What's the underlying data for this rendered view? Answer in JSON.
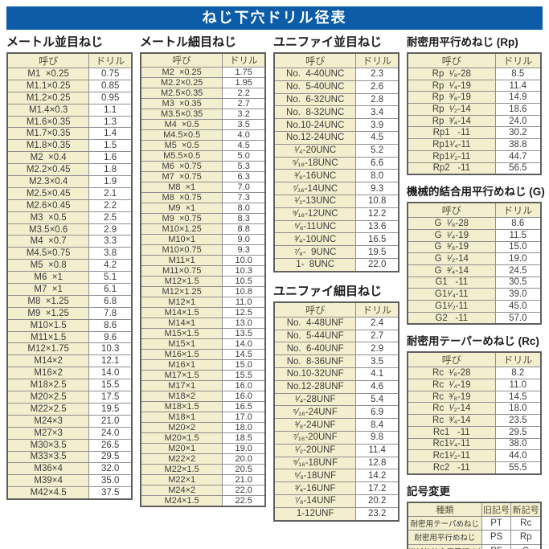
{
  "page_title": "ねじ下穴ドリル径表",
  "col_headers": {
    "name": "呼び",
    "drill": "ドリル"
  },
  "colors": {
    "banner_blue": "#0c5ca8",
    "cell_cream": "#f3eecd",
    "border_gray": "#8f8f8f"
  },
  "corner_mark": "‥",
  "sections": {
    "metric_coarse": {
      "title": "メートル並目ねじ",
      "rows": [
        [
          "M1  ×0.25",
          "0.75"
        ],
        [
          "M1.1×0.25",
          "0.85"
        ],
        [
          "M1.2×0.25",
          "0.95"
        ],
        [
          "M1.4×0.3",
          "1.1"
        ],
        [
          "M1.6×0.35",
          "1.3"
        ],
        [
          "M1.7×0.35",
          "1.4"
        ],
        [
          "M1.8×0.35",
          "1.5"
        ],
        [
          "M2  ×0.4",
          "1.6"
        ],
        [
          "M2.2×0.45",
          "1.8"
        ],
        [
          "M2.3×0.4",
          "1.9"
        ],
        [
          "M2.5×0.45",
          "2.1"
        ],
        [
          "M2.6×0.45",
          "2.2"
        ],
        [
          "M3  ×0.5",
          "2.5"
        ],
        [
          "M3.5×0.6",
          "2.9"
        ],
        [
          "M4  ×0.7",
          "3.3"
        ],
        [
          "M4.5×0.75",
          "3.8"
        ],
        [
          "M5  ×0.8",
          "4.2"
        ],
        [
          "M6  ×1",
          "5.1"
        ],
        [
          "M7  ×1",
          "6.1"
        ],
        [
          "M8  ×1.25",
          "6.8"
        ],
        [
          "M9  ×1.25",
          "7.8"
        ],
        [
          "M10×1.5",
          "8.6"
        ],
        [
          "M11×1.5",
          "9.6"
        ],
        [
          "M12×1.75",
          "10.3"
        ],
        [
          "M14×2",
          "12.1"
        ],
        [
          "M16×2",
          "14.0"
        ],
        [
          "M18×2.5",
          "15.5"
        ],
        [
          "M20×2.5",
          "17.5"
        ],
        [
          "M22×2.5",
          "19.5"
        ],
        [
          "M24×3",
          "21.0"
        ],
        [
          "M27×3",
          "24.0"
        ],
        [
          "M30×3.5",
          "26.5"
        ],
        [
          "M33×3.5",
          "29.5"
        ],
        [
          "M36×4",
          "32.0"
        ],
        [
          "M39×4",
          "35.0"
        ],
        [
          "M42×4.5",
          "37.5"
        ]
      ]
    },
    "metric_fine": {
      "title": "メートル細目ねじ",
      "rows": [
        [
          "M2  ×0.25",
          "1.75"
        ],
        [
          "M2.2×0.25",
          "1.95"
        ],
        [
          "M2.5×0.35",
          "2.2"
        ],
        [
          "M3  ×0.35",
          "2.7"
        ],
        [
          "M3.5×0.35",
          "3.2"
        ],
        [
          "M4  ×0.5",
          "3.5"
        ],
        [
          "M4.5×0.5",
          "4.0"
        ],
        [
          "M5  ×0.5",
          "4.5"
        ],
        [
          "M5.5×0.5",
          "5.0"
        ],
        [
          "M6  ×0.75",
          "5.3"
        ],
        [
          "M7  ×0.75",
          "6.3"
        ],
        [
          "M8  ×1",
          "7.0"
        ],
        [
          "M8  ×0.75",
          "7.3"
        ],
        [
          "M9  ×1",
          "8.0"
        ],
        [
          "M9  ×0.75",
          "8.3"
        ],
        [
          "M10×1.25",
          "8.8"
        ],
        [
          "M10×1",
          "9.0"
        ],
        [
          "M10×0.75",
          "9.3"
        ],
        [
          "M11×1",
          "10.0"
        ],
        [
          "M11×0.75",
          "10.3"
        ],
        [
          "M12×1.5",
          "10.5"
        ],
        [
          "M12×1.25",
          "10.8"
        ],
        [
          "M12×1",
          "11.0"
        ],
        [
          "M14×1.5",
          "12.5"
        ],
        [
          "M14×1",
          "13.0"
        ],
        [
          "M15×1.5",
          "13.5"
        ],
        [
          "M15×1",
          "14.0"
        ],
        [
          "M16×1.5",
          "14.5"
        ],
        [
          "M16×1",
          "15.0"
        ],
        [
          "M17×1.5",
          "15.5"
        ],
        [
          "M17×1",
          "16.0"
        ],
        [
          "M18×2",
          "16.0"
        ],
        [
          "M18×1.5",
          "16.5"
        ],
        [
          "M18×1",
          "17.0"
        ],
        [
          "M20×2",
          "18.0"
        ],
        [
          "M20×1.5",
          "18.5"
        ],
        [
          "M20×1",
          "19.0"
        ],
        [
          "M22×2",
          "20.0"
        ],
        [
          "M22×1.5",
          "20.5"
        ],
        [
          "M22×1",
          "21.0"
        ],
        [
          "M24×2",
          "22.0"
        ],
        [
          "M24×1.5",
          "22.5"
        ]
      ]
    },
    "unified_coarse": {
      "title": "ユニファイ並目ねじ",
      "rows": [
        [
          "No.  4-40UNC",
          "2.3"
        ],
        [
          "No.  5-40UNC",
          "2.6"
        ],
        [
          "No.  6-32UNC",
          "2.8"
        ],
        [
          "No.  8-32UNC",
          "3.4"
        ],
        [
          "No.10-24UNC",
          "3.9"
        ],
        [
          "No.12-24UNC",
          "4.5"
        ],
        [
          "¹⁄₄-20UNC",
          "5.2"
        ],
        [
          "⁵⁄₁₆-18UNC",
          "6.6"
        ],
        [
          "³⁄₈-16UNC",
          "8.0"
        ],
        [
          "⁷⁄₁₆-14UNC",
          "9.3"
        ],
        [
          "¹⁄₂-13UNC",
          "10.8"
        ],
        [
          "⁹⁄₁₆-12UNC",
          "12.2"
        ],
        [
          "⁵⁄₈-11UNC",
          "13.6"
        ],
        [
          "³⁄₄-10UNC",
          "16.5"
        ],
        [
          "⁷⁄₈-  9UNC",
          "19.5"
        ],
        [
          "1-  8UNC",
          "22.0"
        ]
      ]
    },
    "unified_fine": {
      "title": "ユニファイ細目ねじ",
      "rows": [
        [
          "No.  4-48UNF",
          "2.4"
        ],
        [
          "No.  5-44UNF",
          "2.7"
        ],
        [
          "No.  6-40UNF",
          "2.9"
        ],
        [
          "No.  8-36UNF",
          "3.5"
        ],
        [
          "No.10-32UNF",
          "4.1"
        ],
        [
          "No.12-28UNF",
          "4.6"
        ],
        [
          "¹⁄₄-28UNF",
          "5.4"
        ],
        [
          "⁵⁄₁₆-24UNF",
          "6.9"
        ],
        [
          "³⁄₈-24UNF",
          "8.4"
        ],
        [
          "⁷⁄₁₆-20UNF",
          "9.8"
        ],
        [
          "¹⁄₂-20UNF",
          "11.4"
        ],
        [
          "⁹⁄₁₆-18UNF",
          "12.8"
        ],
        [
          "⁵⁄₈-18UNF",
          "14.2"
        ],
        [
          "³⁄₄-16UNF",
          "17.2"
        ],
        [
          "⁷⁄₈-14UNF",
          "20.2"
        ],
        [
          "1-12UNF",
          "23.2"
        ]
      ]
    },
    "rp": {
      "title": "耐密用平行めねじ (Rp)",
      "rows": [
        [
          "Rp  ¹⁄₈-28",
          "8.5"
        ],
        [
          "Rp  ¹⁄₄-19",
          "11.4"
        ],
        [
          "Rp  ³⁄₈-19",
          "14.9"
        ],
        [
          "Rp  ¹⁄₂-14",
          "18.6"
        ],
        [
          "Rp  ³⁄₄-14",
          "24.0"
        ],
        [
          "Rp1   -11",
          "30.2"
        ],
        [
          "Rp1¹⁄₄-11",
          "38.8"
        ],
        [
          "Rp1¹⁄₂-11",
          "44.7"
        ],
        [
          "Rp2   -11",
          "56.5"
        ]
      ]
    },
    "g": {
      "title": "機械的結合用平行めねじ (G)",
      "rows": [
        [
          "G  ¹⁄₈-28",
          "8.6"
        ],
        [
          "G  ¹⁄₄-19",
          "11.5"
        ],
        [
          "G  ³⁄₈-19",
          "15.0"
        ],
        [
          "G  ¹⁄₂-14",
          "19.0"
        ],
        [
          "G  ³⁄₄-14",
          "24.5"
        ],
        [
          "G1   -11",
          "30.5"
        ],
        [
          "G1¹⁄₄-11",
          "39.0"
        ],
        [
          "G1¹⁄₂-11",
          "45.0"
        ],
        [
          "G2   -11",
          "57.0"
        ]
      ]
    },
    "rc": {
      "title": "耐密用テーパーめねじ (Rc)",
      "rows": [
        [
          "Rc  ¹⁄₈-28",
          "8.2"
        ],
        [
          "Rc  ¹⁄₄-19",
          "11.0"
        ],
        [
          "Rc  ³⁄₈-19",
          "14.5"
        ],
        [
          "Rc  ¹⁄₂-14",
          "18.0"
        ],
        [
          "Rc  ³⁄₄-14",
          "23.5"
        ],
        [
          "Rc1   -11",
          "29.5"
        ],
        [
          "Rc1¹⁄₄-11",
          "38.0"
        ],
        [
          "Rc1¹⁄₂-11",
          "44.0"
        ],
        [
          "Rc2   -11",
          "55.5"
        ]
      ]
    },
    "symbol_change": {
      "title": "記号変更",
      "headers": {
        "kind": "種類",
        "old": "旧記号",
        "new": "新記号"
      },
      "rows": [
        [
          "耐密用テーパめねじ",
          "PT",
          "Rc"
        ],
        [
          "耐密用平行めねじ",
          "PS",
          "Rp"
        ],
        [
          "機械的結合用平行めねじ",
          "PF",
          "G"
        ]
      ]
    }
  }
}
